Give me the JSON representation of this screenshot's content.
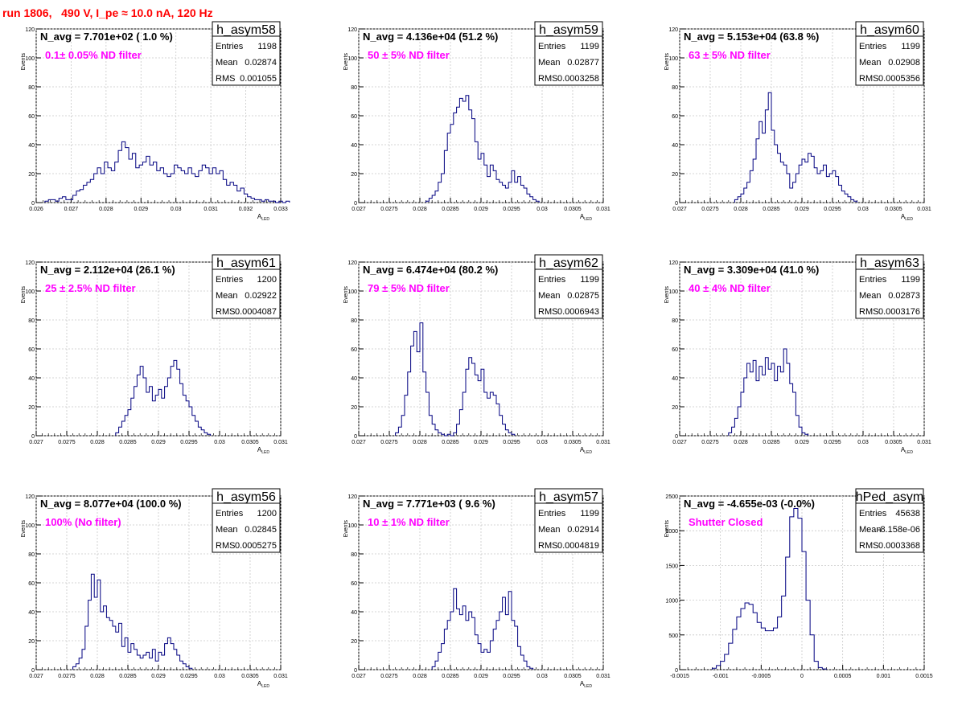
{
  "run_title": "run 1806,   490 V, I_pe ≈ 10.0 nA, 120 Hz",
  "stats_labels": [
    "Entries",
    "Mean",
    "RMS"
  ],
  "colors": {
    "hist": "#000080",
    "annotation": "#ff00ff",
    "title": "#ff0000",
    "grid": "#c8c8c8"
  },
  "chart_data": [
    {
      "type": "bar",
      "name": "h_asym58",
      "ylabel": "Events",
      "xlabel": "A_LED",
      "xlim": [
        0.026,
        0.033
      ],
      "ylim": [
        0,
        120
      ],
      "xticks": [
        0.026,
        0.027,
        0.028,
        0.029,
        0.03,
        0.031,
        0.032,
        0.033
      ],
      "xticklabels": [
        "0.026",
        "0.027",
        "0.028",
        "0.029",
        "0.03",
        "0.031",
        "0.032",
        "0.033"
      ],
      "yticks": [
        0,
        20,
        40,
        60,
        80,
        100,
        120
      ],
      "navg": "N_avg = 7.701e+02 ( 1.0 %)",
      "filter": "0.1± 0.05% ND filter",
      "entries": "1198",
      "mean": "0.02874",
      "rms": "0.001055",
      "bin_start": 0.02625,
      "bin_width": 0.0001,
      "values": [
        1,
        2,
        2,
        1,
        3,
        4,
        2,
        2,
        5,
        8,
        9,
        12,
        14,
        16,
        20,
        24,
        20,
        28,
        24,
        22,
        28,
        36,
        42,
        38,
        30,
        34,
        24,
        26,
        28,
        32,
        26,
        28,
        22,
        24,
        20,
        18,
        20,
        26,
        24,
        22,
        20,
        24,
        20,
        18,
        22,
        26,
        24,
        20,
        24,
        20,
        22,
        16,
        12,
        14,
        12,
        8,
        10,
        6,
        4,
        3,
        2,
        2,
        1,
        2,
        1,
        1,
        0,
        1,
        0,
        1
      ]
    },
    {
      "type": "bar",
      "name": "h_asym59",
      "ylabel": "Events",
      "xlabel": "A_LED",
      "xlim": [
        0.027,
        0.031
      ],
      "ylim": [
        0,
        120
      ],
      "xticks": [
        0.027,
        0.0275,
        0.028,
        0.0285,
        0.029,
        0.0295,
        0.03,
        0.0305,
        0.031
      ],
      "xticklabels": [
        "0.027",
        "0.0275",
        "0.028",
        "0.0285",
        "0.029",
        "0.0295",
        "0.03",
        "0.0305",
        "0.031"
      ],
      "yticks": [
        0,
        20,
        40,
        60,
        80,
        100,
        120
      ],
      "navg": "N_avg = 4.136e+04 (51.2 %)",
      "filter": "50 ± 5% ND filter",
      "entries": "1199",
      "mean": "0.02877",
      "rms": "0.0003258",
      "bin_start": 0.0281,
      "bin_width": 5e-05,
      "values": [
        1,
        3,
        5,
        8,
        14,
        20,
        36,
        48,
        54,
        62,
        66,
        72,
        70,
        74,
        64,
        58,
        42,
        30,
        34,
        26,
        18,
        26,
        22,
        16,
        14,
        12,
        10,
        14,
        22,
        14,
        18,
        12,
        10,
        6,
        4,
        2,
        1
      ]
    },
    {
      "type": "bar",
      "name": "h_asym60",
      "ylabel": "Events",
      "xlabel": "A_LED",
      "xlim": [
        0.027,
        0.031
      ],
      "ylim": [
        0,
        120
      ],
      "xticks": [
        0.027,
        0.0275,
        0.028,
        0.0285,
        0.029,
        0.0295,
        0.03,
        0.0305,
        0.031
      ],
      "xticklabels": [
        "0.027",
        "0.0275",
        "0.028",
        "0.0285",
        "0.029",
        "0.0295",
        "0.03",
        "0.0305",
        "0.031"
      ],
      "yticks": [
        0,
        20,
        40,
        60,
        80,
        100,
        120
      ],
      "navg": "N_avg = 5.153e+04 (63.8 %)",
      "filter": "63 ± 5% ND filter",
      "entries": "1199",
      "mean": "0.02908",
      "rms": "0.0005356",
      "bin_start": 0.0279,
      "bin_width": 5e-05,
      "values": [
        2,
        4,
        6,
        10,
        14,
        22,
        30,
        44,
        56,
        48,
        64,
        76,
        50,
        40,
        34,
        28,
        26,
        20,
        10,
        14,
        20,
        26,
        30,
        28,
        34,
        32,
        24,
        20,
        22,
        26,
        18,
        20,
        22,
        18,
        12,
        8,
        6,
        4,
        2,
        1
      ]
    },
    {
      "type": "bar",
      "name": "h_asym61",
      "ylabel": "Events",
      "xlabel": "A_LED",
      "xlim": [
        0.027,
        0.031
      ],
      "ylim": [
        0,
        120
      ],
      "xticks": [
        0.027,
        0.0275,
        0.028,
        0.0285,
        0.029,
        0.0295,
        0.03,
        0.0305,
        0.031
      ],
      "xticklabels": [
        "0.027",
        "0.0275",
        "0.028",
        "0.0285",
        "0.029",
        "0.0295",
        "0.03",
        "0.0305",
        "0.031"
      ],
      "yticks": [
        0,
        20,
        40,
        60,
        80,
        100,
        120
      ],
      "navg": "N_avg = 2.112e+04 (26.1 %)",
      "filter": "25 ± 2.5% ND filter",
      "entries": "1200",
      "mean": "0.02922",
      "rms": "0.0004087",
      "bin_start": 0.0283,
      "bin_width": 5e-05,
      "values": [
        2,
        6,
        10,
        14,
        18,
        26,
        34,
        42,
        48,
        40,
        30,
        34,
        24,
        28,
        32,
        26,
        34,
        40,
        48,
        52,
        46,
        36,
        28,
        24,
        20,
        14,
        10,
        6,
        4,
        2,
        1
      ]
    },
    {
      "type": "bar",
      "name": "h_asym62",
      "ylabel": "Events",
      "xlabel": "A_LED",
      "xlim": [
        0.027,
        0.031
      ],
      "ylim": [
        0,
        120
      ],
      "xticks": [
        0.027,
        0.0275,
        0.028,
        0.0285,
        0.029,
        0.0295,
        0.03,
        0.0305,
        0.031
      ],
      "xticklabels": [
        "0.027",
        "0.0275",
        "0.028",
        "0.0285",
        "0.029",
        "0.0295",
        "0.03",
        "0.0305",
        "0.031"
      ],
      "yticks": [
        0,
        20,
        40,
        60,
        80,
        100,
        120
      ],
      "navg": "N_avg = 6.474e+04 (80.2 %)",
      "filter": "79 ± 5% ND filter",
      "entries": "1199",
      "mean": "0.02875",
      "rms": "0.0006943",
      "bin_start": 0.0276,
      "bin_width": 5e-05,
      "values": [
        2,
        6,
        14,
        28,
        44,
        62,
        72,
        58,
        78,
        44,
        30,
        14,
        8,
        4,
        2,
        1,
        0,
        1,
        0,
        2,
        8,
        18,
        30,
        46,
        54,
        50,
        42,
        38,
        46,
        30,
        26,
        30,
        28,
        22,
        14,
        8,
        4,
        2,
        1
      ]
    },
    {
      "type": "bar",
      "name": "h_asym63",
      "ylabel": "Events",
      "xlabel": "A_LED",
      "xlim": [
        0.027,
        0.031
      ],
      "ylim": [
        0,
        120
      ],
      "xticks": [
        0.027,
        0.0275,
        0.028,
        0.0285,
        0.029,
        0.0295,
        0.03,
        0.0305,
        0.031
      ],
      "xticklabels": [
        "0.027",
        "0.0275",
        "0.028",
        "0.0285",
        "0.029",
        "0.0295",
        "0.03",
        "0.0305",
        "0.031"
      ],
      "yticks": [
        0,
        20,
        40,
        60,
        80,
        100,
        120
      ],
      "navg": "N_avg = 3.309e+04 (41.0 %)",
      "filter": "40 ± 4% ND filter",
      "entries": "1199",
      "mean": "0.02873",
      "rms": "0.0003176",
      "bin_start": 0.0278,
      "bin_width": 5e-05,
      "values": [
        2,
        6,
        12,
        20,
        30,
        40,
        50,
        44,
        52,
        38,
        48,
        42,
        54,
        46,
        50,
        38,
        48,
        44,
        60,
        50,
        36,
        30,
        14,
        6,
        2,
        1
      ]
    },
    {
      "type": "bar",
      "name": "h_asym56",
      "ylabel": "Events",
      "xlabel": "A_LED",
      "xlim": [
        0.027,
        0.031
      ],
      "ylim": [
        0,
        120
      ],
      "xticks": [
        0.027,
        0.0275,
        0.028,
        0.0285,
        0.029,
        0.0295,
        0.03,
        0.0305,
        0.031
      ],
      "xticklabels": [
        "0.027",
        "0.0275",
        "0.028",
        "0.0285",
        "0.029",
        "0.0295",
        "0.03",
        "0.0305",
        "0.031"
      ],
      "yticks": [
        0,
        20,
        40,
        60,
        80,
        100,
        120
      ],
      "navg": "N_avg = 8.077e+04 (100.0 %)",
      "filter": "100% (No filter)",
      "entries": "1200",
      "mean": "0.02845",
      "rms": "0.0005275",
      "bin_start": 0.0276,
      "bin_width": 5e-05,
      "values": [
        2,
        4,
        8,
        14,
        30,
        48,
        66,
        50,
        62,
        40,
        44,
        36,
        34,
        30,
        26,
        32,
        16,
        22,
        12,
        18,
        14,
        10,
        8,
        10,
        12,
        8,
        14,
        6,
        12,
        10,
        18,
        22,
        18,
        14,
        10,
        6,
        4,
        2,
        1
      ]
    },
    {
      "type": "bar",
      "name": "h_asym57",
      "ylabel": "Events",
      "xlabel": "A_LED",
      "xlim": [
        0.027,
        0.031
      ],
      "ylim": [
        0,
        120
      ],
      "xticks": [
        0.027,
        0.0275,
        0.028,
        0.0285,
        0.029,
        0.0295,
        0.03,
        0.0305,
        0.031
      ],
      "xticklabels": [
        "0.027",
        "0.0275",
        "0.028",
        "0.0285",
        "0.029",
        "0.0295",
        "0.03",
        "0.0305",
        "0.031"
      ],
      "yticks": [
        0,
        20,
        40,
        60,
        80,
        100,
        120
      ],
      "navg": "N_avg = 7.771e+03 ( 9.6 %)",
      "filter": "10 ± 1% ND filter",
      "entries": "1199",
      "mean": "0.02914",
      "rms": "0.0004819",
      "bin_start": 0.0282,
      "bin_width": 5e-05,
      "values": [
        2,
        6,
        12,
        18,
        28,
        34,
        40,
        56,
        42,
        38,
        44,
        34,
        40,
        36,
        24,
        18,
        12,
        14,
        12,
        20,
        28,
        34,
        40,
        50,
        38,
        54,
        34,
        30,
        16,
        10,
        6,
        2,
        1
      ]
    },
    {
      "type": "bar",
      "name": "hPed_asym",
      "ylabel": "Events",
      "xlabel": "",
      "xlim": [
        -0.0015,
        0.0015
      ],
      "ylim": [
        0,
        2500
      ],
      "xticks": [
        -0.0015,
        -0.001,
        -0.0005,
        0,
        0.0005,
        0.001,
        0.0015
      ],
      "xticklabels": [
        "-0.0015",
        "-0.001",
        "-0.0005",
        "0",
        "0.0005",
        "0.001",
        "0.0015"
      ],
      "yticks": [
        0,
        500,
        1000,
        1500,
        2000,
        2500
      ],
      "navg": "N_avg = -4.655e-03 (-0.0%)",
      "filter": "Shutter Closed",
      "entries": "45638",
      "mean": "-8.158e-06",
      "rms": "0.0003368",
      "bin_start": -0.0011,
      "bin_width": 5e-05,
      "values": [
        20,
        60,
        120,
        220,
        380,
        580,
        760,
        880,
        960,
        940,
        820,
        680,
        600,
        560,
        560,
        600,
        760,
        1060,
        1620,
        2200,
        2320,
        2180,
        1700,
        1000,
        500,
        120,
        30,
        10
      ]
    }
  ]
}
